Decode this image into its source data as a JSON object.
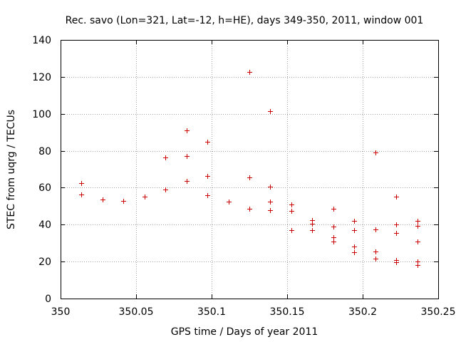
{
  "chart_data": {
    "type": "scatter",
    "title": "Rec. savo (Lon=321, Lat=-12, h=HE), days 349-350, 2011, window 001",
    "xlabel": "GPS time / Days of year 2011",
    "ylabel": "STEC from uqrg / TECUs",
    "xlim": [
      350,
      350.25
    ],
    "ylim": [
      0,
      140
    ],
    "x_ticks": [
      350,
      350.05,
      350.1,
      350.15,
      350.2,
      350.25
    ],
    "x_tick_labels": [
      "350",
      "350.05",
      "350.1",
      "350.15",
      "350.2",
      "350.25"
    ],
    "y_ticks": [
      0,
      20,
      40,
      60,
      80,
      100,
      120,
      140
    ],
    "y_tick_labels": [
      "0",
      "20",
      "40",
      "60",
      "80",
      "100",
      "120",
      "140"
    ],
    "grid": true,
    "marker": "+",
    "colors": {
      "marker": "#cc0000",
      "axis": "#000000",
      "grid": "#a0a0a0"
    },
    "series": [
      {
        "name": "STEC",
        "x": [
          350.0139,
          350.0139,
          350.0278,
          350.0417,
          350.0556,
          350.0694,
          350.0694,
          350.0833,
          350.0833,
          350.0833,
          350.0972,
          350.0972,
          350.0972,
          350.1111,
          350.125,
          350.125,
          350.125,
          350.1389,
          350.1389,
          350.1389,
          350.1389,
          350.1528,
          350.1528,
          350.1528,
          350.1667,
          350.1667,
          350.1667,
          350.1806,
          350.1806,
          350.1806,
          350.1806,
          350.1944,
          350.1944,
          350.1944,
          350.1944,
          350.2083,
          350.2083,
          350.2083,
          350.2083,
          350.2222,
          350.2222,
          350.2222,
          350.2222,
          350.2222,
          350.2361,
          350.2361,
          350.2361,
          350.2361,
          350.2361
        ],
        "y": [
          62.5,
          56.5,
          53.5,
          53,
          55,
          76.5,
          59,
          91,
          77,
          63.5,
          85,
          66.5,
          56,
          52.5,
          122.5,
          65.5,
          48.5,
          101.5,
          60.5,
          52.5,
          48,
          51,
          47.5,
          37,
          42.5,
          40.5,
          37,
          48.5,
          39,
          33,
          31,
          42,
          37,
          28,
          25,
          79,
          37.5,
          25.5,
          21.5,
          55,
          40,
          35.5,
          21,
          19.5,
          42,
          39.5,
          31,
          20,
          18
        ]
      }
    ]
  }
}
